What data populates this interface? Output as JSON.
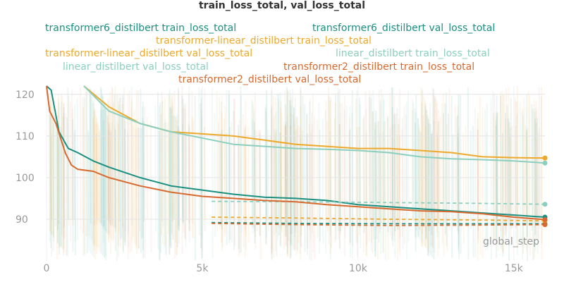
{
  "colors": {
    "transformer6": "#1b8f80",
    "transformer_linear": "#eda92c",
    "linear": "#8ccfbf",
    "transformer2": "#d8692f",
    "grid": "#e4e4e4",
    "tick": "#999999"
  },
  "chart_data": {
    "type": "line",
    "title": "train_loss_total, val_loss_total",
    "xlabel": "global_step",
    "ylabel": "",
    "xlim": [
      0,
      16000
    ],
    "ylim": [
      80,
      122
    ],
    "x_ticks": [
      0,
      5000,
      10000,
      15000
    ],
    "x_tick_labels": [
      "0",
      "5k",
      "10k",
      "15k"
    ],
    "y_ticks": [
      90,
      100,
      110,
      120
    ],
    "y_tick_labels": [
      "90",
      "100",
      "110",
      "120"
    ],
    "grid": true,
    "legend_position": "top",
    "series": [
      {
        "name": "transformer6_distilbert train_loss_total",
        "color_key": "transformer6",
        "style": "solid",
        "x": [
          0,
          150,
          400,
          700,
          1000,
          1500,
          2000,
          3000,
          4000,
          5000,
          6000,
          7000,
          8000,
          9000,
          10000,
          11000,
          12000,
          13000,
          14000,
          15000,
          16000
        ],
        "y": [
          122,
          121,
          111,
          107,
          106,
          104,
          102.5,
          100,
          98,
          97,
          96,
          95.3,
          95,
          94.5,
          93.5,
          93,
          92.5,
          92,
          91.5,
          91,
          90.5
        ]
      },
      {
        "name": "transformer6_distilbert val_loss_total",
        "color_key": "transformer6",
        "style": "dashed",
        "x": [
          5300,
          8000,
          11000,
          14000,
          16000
        ],
        "y": [
          89.2,
          89,
          88.9,
          88.9,
          88.9
        ]
      },
      {
        "name": "transformer-linear_distilbert train_loss_total",
        "color_key": "transformer_linear",
        "style": "solid",
        "x": [
          1200,
          2000,
          3000,
          4000,
          5000,
          6000,
          7000,
          8000,
          9000,
          10000,
          11000,
          12000,
          13000,
          14000,
          15000,
          16000
        ],
        "y": [
          122,
          117,
          113,
          111,
          110.5,
          110,
          109,
          108,
          107.5,
          107,
          107,
          106.5,
          106,
          105,
          104.8,
          104.7
        ]
      },
      {
        "name": "transformer-linear_distilbert val_loss_total",
        "color_key": "transformer_linear",
        "style": "dashed",
        "x": [
          5300,
          8000,
          11000,
          14000,
          16000
        ],
        "y": [
          90.5,
          90.3,
          90,
          89.8,
          89.6
        ]
      },
      {
        "name": "linear_distilbert train_loss_total",
        "color_key": "linear",
        "style": "solid",
        "x": [
          1200,
          2000,
          3000,
          4000,
          5000,
          6000,
          7000,
          8000,
          9000,
          10000,
          11000,
          12000,
          13000,
          14000,
          15000,
          16000
        ],
        "y": [
          122,
          116,
          113,
          111,
          109.5,
          108,
          107.5,
          107,
          106.8,
          106.5,
          106,
          105,
          104.5,
          104.3,
          104,
          103.5
        ]
      },
      {
        "name": "linear_distilbert val_loss_total",
        "color_key": "linear",
        "style": "dashed",
        "x": [
          5300,
          8000,
          11000,
          14000,
          16000
        ],
        "y": [
          94.3,
          94.2,
          94,
          93.8,
          93.6
        ]
      },
      {
        "name": "transformer2_distilbert train_loss_total",
        "color_key": "transformer2",
        "style": "solid",
        "x": [
          0,
          100,
          300,
          600,
          800,
          1000,
          1500,
          2000,
          3000,
          4000,
          5000,
          6000,
          7000,
          8000,
          9000,
          10000,
          11000,
          12000,
          13000,
          14000,
          15000,
          16000
        ],
        "y": [
          122,
          116,
          113,
          106,
          103,
          102,
          101.5,
          100,
          98,
          96.5,
          95.5,
          95,
          94.5,
          94.2,
          93.5,
          93,
          92.5,
          92,
          91.8,
          91.3,
          90.5,
          89.9
        ]
      },
      {
        "name": "transformer2_distilbert val_loss_total",
        "color_key": "transformer2",
        "style": "dashed",
        "x": [
          5300,
          8000,
          11000,
          14000,
          16000
        ],
        "y": [
          89,
          88.7,
          88.5,
          88.6,
          88.7
        ]
      }
    ]
  }
}
